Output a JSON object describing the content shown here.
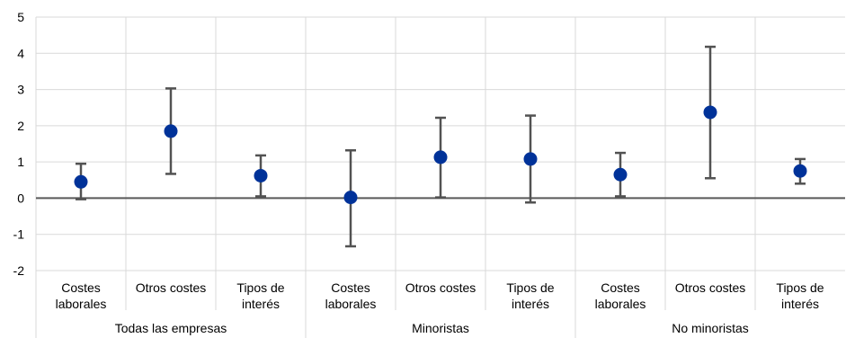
{
  "chart_data": {
    "type": "scatter",
    "title": "",
    "xlabel": "",
    "ylabel": "",
    "ylim": [
      -2,
      5
    ],
    "yticks": [
      5,
      4,
      3,
      2,
      1,
      0,
      -1,
      -2
    ],
    "grid": true,
    "legend": "none",
    "groups": [
      {
        "name": "Todas las empresas",
        "categories": [
          {
            "label": [
              "Costes",
              "laborales"
            ],
            "value": 0.45,
            "low": -0.03,
            "high": 0.95
          },
          {
            "label": [
              "Otros costes"
            ],
            "value": 1.85,
            "low": 0.67,
            "high": 3.03
          },
          {
            "label": [
              "Tipos de",
              "interés"
            ],
            "value": 0.62,
            "low": 0.05,
            "high": 1.18
          }
        ]
      },
      {
        "name": "Minoristas",
        "categories": [
          {
            "label": [
              "Costes",
              "laborales"
            ],
            "value": 0.02,
            "low": -1.33,
            "high": 1.32
          },
          {
            "label": [
              "Otros costes"
            ],
            "value": 1.13,
            "low": 0.02,
            "high": 2.22
          },
          {
            "label": [
              "Tipos de",
              "interés"
            ],
            "value": 1.08,
            "low": -0.12,
            "high": 2.28
          }
        ]
      },
      {
        "name": "No minoristas",
        "categories": [
          {
            "label": [
              "Costes",
              "laborales"
            ],
            "value": 0.65,
            "low": 0.05,
            "high": 1.25
          },
          {
            "label": [
              "Otros costes"
            ],
            "value": 2.37,
            "low": 0.55,
            "high": 4.18
          },
          {
            "label": [
              "Tipos de",
              "interés"
            ],
            "value": 0.75,
            "low": 0.4,
            "high": 1.08
          }
        ]
      }
    ],
    "colors": {
      "point": "#003299",
      "error_bar": "#525252",
      "grid": "#d9d9d9",
      "zero_line": "#595959"
    }
  }
}
